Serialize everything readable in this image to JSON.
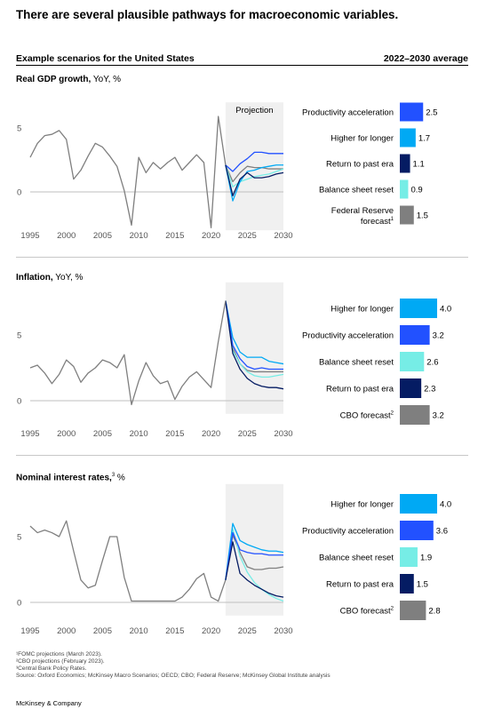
{
  "title": "There are several plausible pathways for macroeconomic variables.",
  "subtitle_left": "Example scenarios for the United States",
  "subtitle_right": "2022–2030 average",
  "projection_label": "Projection",
  "colors": {
    "productivity_acceleration": "#2251ff",
    "higher_for_longer": "#00a9f4",
    "return_to_past_era": "#051c63",
    "balance_sheet_reset": "#76ede6",
    "forecast": "#7f7f7f",
    "history": "#7f7f7f",
    "projection_shade": "#f0f0f0"
  },
  "footnotes": [
    "¹FOMC projections (March 2023).",
    "²CBO projections (February 2023).",
    "³Central Bank Policy Rates.",
    "Source: Oxford Economics; McKinsey Macro Scenarios; OECD; CBO; Federal Reserve; McKinsey Global Institute analysis"
  ],
  "brand": "McKinsey & Company",
  "chart_data": [
    {
      "type": "line",
      "title_bold": "Real GDP growth,",
      "title_rest": " YoY, %",
      "title_sup": "",
      "xlim": [
        1995,
        2030
      ],
      "ylim": [
        -3,
        7
      ],
      "yticks": [
        0,
        5
      ],
      "xticks": [
        1995,
        2000,
        2005,
        2010,
        2015,
        2020,
        2025,
        2030
      ],
      "projection_start": 2022,
      "history": {
        "x": [
          1995,
          1996,
          1997,
          1998,
          1999,
          2000,
          2001,
          2002,
          2003,
          2004,
          2005,
          2006,
          2007,
          2008,
          2009,
          2010,
          2011,
          2012,
          2013,
          2014,
          2015,
          2016,
          2017,
          2018,
          2019,
          2020,
          2021,
          2022
        ],
        "y": [
          2.7,
          3.8,
          4.4,
          4.5,
          4.8,
          4.1,
          1.0,
          1.7,
          2.8,
          3.8,
          3.5,
          2.8,
          2.0,
          0.1,
          -2.6,
          2.7,
          1.5,
          2.3,
          1.8,
          2.3,
          2.7,
          1.7,
          2.3,
          2.9,
          2.3,
          -2.8,
          5.9,
          2.1
        ]
      },
      "scenarios": [
        {
          "key": "productivity_acceleration",
          "x": [
            2022,
            2023,
            2024,
            2025,
            2026,
            2027,
            2028,
            2029,
            2030
          ],
          "y": [
            2.1,
            1.6,
            2.2,
            2.6,
            3.1,
            3.1,
            3.0,
            3.0,
            3.0
          ]
        },
        {
          "key": "higher_for_longer",
          "x": [
            2022,
            2023,
            2024,
            2025,
            2026,
            2027,
            2028,
            2029,
            2030
          ],
          "y": [
            2.1,
            -0.7,
            0.8,
            1.6,
            1.7,
            1.9,
            2.0,
            2.1,
            2.1
          ]
        },
        {
          "key": "return_to_past_era",
          "x": [
            2022,
            2023,
            2024,
            2025,
            2026,
            2027,
            2028,
            2029,
            2030
          ],
          "y": [
            2.1,
            -0.3,
            1.0,
            1.5,
            1.1,
            1.1,
            1.2,
            1.4,
            1.5
          ]
        },
        {
          "key": "balance_sheet_reset",
          "x": [
            2022,
            2023,
            2024,
            2025,
            2026,
            2027,
            2028,
            2029,
            2030
          ],
          "y": [
            2.1,
            0.4,
            0.8,
            1.0,
            1.2,
            1.3,
            1.4,
            1.6,
            1.8
          ]
        },
        {
          "key": "forecast",
          "x": [
            2022,
            2023,
            2024,
            2025,
            2026,
            2027,
            2028,
            2029,
            2030
          ],
          "y": [
            2.1,
            0.8,
            1.5,
            2.0,
            1.9,
            1.9,
            1.8,
            1.8,
            1.8
          ]
        }
      ],
      "bars": [
        {
          "label": "Productivity acceleration",
          "sup": "",
          "value": 2.5,
          "value_label": "2.5",
          "key": "productivity_acceleration"
        },
        {
          "label": "Higher for longer",
          "sup": "",
          "value": 1.7,
          "value_label": "1.7",
          "key": "higher_for_longer"
        },
        {
          "label": "Return to past era",
          "sup": "",
          "value": 1.1,
          "value_label": "1.1",
          "key": "return_to_past_era"
        },
        {
          "label": "Balance sheet reset",
          "sup": "",
          "value": 0.9,
          "value_label": "0.9",
          "key": "balance_sheet_reset"
        },
        {
          "label": "Federal Reserve",
          "label2": "forecast",
          "sup": "1",
          "value": 1.5,
          "value_label": "1.5",
          "key": "forecast"
        }
      ]
    },
    {
      "type": "line",
      "title_bold": "Inflation,",
      "title_rest": " YoY, %",
      "title_sup": "",
      "xlim": [
        1995,
        2030
      ],
      "ylim": [
        -1,
        9
      ],
      "yticks": [
        0,
        5
      ],
      "xticks": [
        1995,
        2000,
        2005,
        2010,
        2015,
        2020,
        2025,
        2030
      ],
      "projection_start": 2022,
      "history": {
        "x": [
          1995,
          1996,
          1997,
          1998,
          1999,
          2000,
          2001,
          2002,
          2003,
          2004,
          2005,
          2006,
          2007,
          2008,
          2009,
          2010,
          2011,
          2012,
          2013,
          2014,
          2015,
          2016,
          2017,
          2018,
          2019,
          2020,
          2021,
          2022
        ],
        "y": [
          2.5,
          2.7,
          2.1,
          1.3,
          2.0,
          3.1,
          2.6,
          1.4,
          2.1,
          2.5,
          3.1,
          2.9,
          2.5,
          3.5,
          -0.3,
          1.5,
          2.9,
          1.9,
          1.3,
          1.5,
          0.1,
          1.1,
          1.8,
          2.2,
          1.6,
          1.0,
          4.5,
          7.6
        ]
      },
      "scenarios": [
        {
          "key": "higher_for_longer",
          "x": [
            2022,
            2023,
            2024,
            2025,
            2026,
            2027,
            2028,
            2029,
            2030
          ],
          "y": [
            7.6,
            4.8,
            3.7,
            3.3,
            3.3,
            3.3,
            3.0,
            2.9,
            2.8
          ]
        },
        {
          "key": "productivity_acceleration",
          "x": [
            2022,
            2023,
            2024,
            2025,
            2026,
            2027,
            2028,
            2029,
            2030
          ],
          "y": [
            7.6,
            4.2,
            3.2,
            2.6,
            2.4,
            2.5,
            2.4,
            2.4,
            2.4
          ]
        },
        {
          "key": "balance_sheet_reset",
          "x": [
            2022,
            2023,
            2024,
            2025,
            2026,
            2027,
            2028,
            2029,
            2030
          ],
          "y": [
            7.6,
            3.8,
            2.8,
            2.2,
            1.9,
            1.8,
            1.8,
            1.9,
            2.0
          ]
        },
        {
          "key": "return_to_past_era",
          "x": [
            2022,
            2023,
            2024,
            2025,
            2026,
            2027,
            2028,
            2029,
            2030
          ],
          "y": [
            7.6,
            3.6,
            2.4,
            1.7,
            1.3,
            1.1,
            1.0,
            1.0,
            0.9
          ]
        },
        {
          "key": "forecast",
          "x": [
            2022,
            2023,
            2024,
            2025,
            2026,
            2027,
            2028,
            2029,
            2030
          ],
          "y": [
            7.6,
            4.0,
            2.8,
            2.3,
            2.2,
            2.2,
            2.2,
            2.2,
            2.2
          ]
        }
      ],
      "bars": [
        {
          "label": "Higher for longer",
          "sup": "",
          "value": 4.0,
          "value_label": "4.0",
          "key": "higher_for_longer"
        },
        {
          "label": "Productivity acceleration",
          "sup": "",
          "value": 3.2,
          "value_label": "3.2",
          "key": "productivity_acceleration"
        },
        {
          "label": "Balance sheet reset",
          "sup": "",
          "value": 2.6,
          "value_label": "2.6",
          "key": "balance_sheet_reset"
        },
        {
          "label": "Return to past era",
          "sup": "",
          "value": 2.3,
          "value_label": "2.3",
          "key": "return_to_past_era"
        },
        {
          "label": "CBO forecast",
          "sup": "2",
          "value": 3.2,
          "value_label": "3.2",
          "key": "forecast"
        }
      ]
    },
    {
      "type": "line",
      "title_bold": "Nominal interest rates,",
      "title_rest": " %",
      "title_sup": "3",
      "xlim": [
        1995,
        2030
      ],
      "ylim": [
        -1,
        9
      ],
      "yticks": [
        0,
        5
      ],
      "xticks": [
        1995,
        2000,
        2005,
        2010,
        2015,
        2020,
        2025,
        2030
      ],
      "projection_start": 2022,
      "history": {
        "x": [
          1995,
          1996,
          1997,
          1998,
          1999,
          2000,
          2001,
          2002,
          2003,
          2004,
          2005,
          2006,
          2007,
          2008,
          2009,
          2010,
          2011,
          2012,
          2013,
          2014,
          2015,
          2016,
          2017,
          2018,
          2019,
          2020,
          2021,
          2022
        ],
        "y": [
          5.8,
          5.3,
          5.5,
          5.3,
          5.0,
          6.2,
          3.9,
          1.7,
          1.1,
          1.3,
          3.2,
          5.0,
          5.0,
          1.9,
          0.1,
          0.1,
          0.1,
          0.1,
          0.1,
          0.1,
          0.1,
          0.4,
          1.0,
          1.8,
          2.2,
          0.4,
          0.1,
          1.7
        ]
      },
      "scenarios": [
        {
          "key": "higher_for_longer",
          "x": [
            2022,
            2023,
            2024,
            2025,
            2026,
            2027,
            2028,
            2029,
            2030
          ],
          "y": [
            1.7,
            6.0,
            4.7,
            4.4,
            4.2,
            4.0,
            3.9,
            3.9,
            3.8
          ]
        },
        {
          "key": "productivity_acceleration",
          "x": [
            2022,
            2023,
            2024,
            2025,
            2026,
            2027,
            2028,
            2029,
            2030
          ],
          "y": [
            1.7,
            5.3,
            4.0,
            3.8,
            3.7,
            3.7,
            3.6,
            3.6,
            3.6
          ]
        },
        {
          "key": "balance_sheet_reset",
          "x": [
            2022,
            2023,
            2024,
            2025,
            2026,
            2027,
            2028,
            2029,
            2030
          ],
          "y": [
            1.7,
            5.6,
            3.5,
            2.3,
            1.5,
            1.0,
            0.6,
            0.3,
            0.1
          ]
        },
        {
          "key": "return_to_past_era",
          "x": [
            2022,
            2023,
            2024,
            2025,
            2026,
            2027,
            2028,
            2029,
            2030
          ],
          "y": [
            1.7,
            4.6,
            2.2,
            1.7,
            1.3,
            1.0,
            0.7,
            0.5,
            0.4
          ]
        },
        {
          "key": "forecast",
          "x": [
            2022,
            2023,
            2024,
            2025,
            2026,
            2027,
            2028,
            2029,
            2030
          ],
          "y": [
            1.7,
            5.1,
            3.8,
            2.7,
            2.5,
            2.5,
            2.6,
            2.6,
            2.7
          ]
        }
      ],
      "bars": [
        {
          "label": "Higher for longer",
          "sup": "",
          "value": 4.0,
          "value_label": "4.0",
          "key": "higher_for_longer"
        },
        {
          "label": "Productivity acceleration",
          "sup": "",
          "value": 3.6,
          "value_label": "3.6",
          "key": "productivity_acceleration"
        },
        {
          "label": "Balance sheet reset",
          "sup": "",
          "value": 1.9,
          "value_label": "1.9",
          "key": "balance_sheet_reset"
        },
        {
          "label": "Return to past era",
          "sup": "",
          "value": 1.5,
          "value_label": "1.5",
          "key": "return_to_past_era"
        },
        {
          "label": "CBO forecast",
          "sup": "2",
          "value": 2.8,
          "value_label": "2.8",
          "key": "forecast"
        }
      ]
    }
  ]
}
